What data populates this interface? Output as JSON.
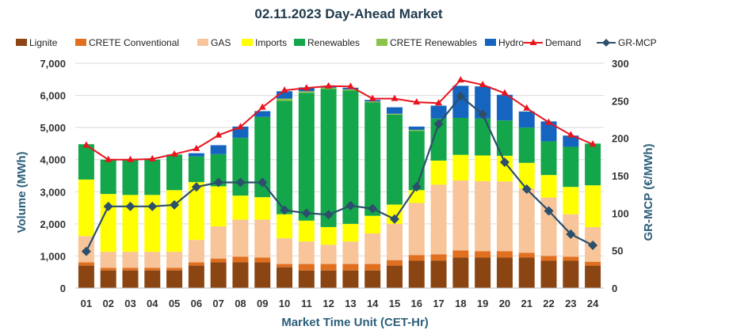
{
  "chart_data": {
    "type": "stacked-bar+line",
    "title": "02.11.2023  Day-Ahead Market",
    "xlabel": "Market Time Unit (CET-Hr)",
    "ylabel": "Volume (MWh)",
    "ylabel_right": "GR-MCP (€/MWh)",
    "ylim": [
      0,
      7000
    ],
    "ylim_right": [
      0,
      300
    ],
    "yticks": [
      "0",
      "1,000",
      "2,000",
      "3,000",
      "4,000",
      "5,000",
      "6,000",
      "7,000"
    ],
    "yticks_right": [
      "0",
      "50",
      "100",
      "150",
      "200",
      "250",
      "300"
    ],
    "categories": [
      "01",
      "02",
      "03",
      "04",
      "05",
      "06",
      "07",
      "08",
      "09",
      "10",
      "11",
      "12",
      "13",
      "14",
      "15",
      "16",
      "17",
      "18",
      "19",
      "20",
      "21",
      "22",
      "23",
      "24"
    ],
    "series": [
      {
        "name": "Lignite",
        "color": "#8B4513",
        "kind": "bar",
        "values": [
          700,
          550,
          550,
          550,
          550,
          700,
          800,
          800,
          800,
          650,
          550,
          550,
          550,
          550,
          700,
          850,
          850,
          950,
          950,
          950,
          950,
          850,
          850,
          700
        ]
      },
      {
        "name": "CRETE Conventional",
        "color": "#E07020",
        "kind": "bar",
        "values": [
          100,
          80,
          80,
          80,
          80,
          100,
          120,
          180,
          150,
          100,
          200,
          200,
          200,
          200,
          170,
          180,
          200,
          220,
          200,
          200,
          150,
          150,
          130,
          120
        ]
      },
      {
        "name": "GAS",
        "color": "#F8C49A",
        "kind": "bar",
        "values": [
          820,
          500,
          500,
          500,
          500,
          700,
          1000,
          1150,
          1180,
          800,
          700,
          600,
          700,
          950,
          1130,
          1620,
          2170,
          2180,
          2180,
          2170,
          2000,
          1820,
          1320,
          1080
        ]
      },
      {
        "name": "Imports",
        "color": "#FFFF00",
        "kind": "bar",
        "values": [
          1760,
          1800,
          1770,
          1770,
          1920,
          1800,
          1250,
          750,
          700,
          750,
          650,
          550,
          550,
          550,
          600,
          400,
          750,
          800,
          800,
          800,
          800,
          700,
          850,
          1300
        ]
      },
      {
        "name": "Renewables",
        "color": "#14A64A",
        "kind": "bar",
        "values": [
          1100,
          1070,
          1100,
          1100,
          1110,
          800,
          1000,
          1800,
          2500,
          3530,
          3980,
          4300,
          4150,
          3530,
          2800,
          1850,
          1310,
          1150,
          1150,
          1100,
          1100,
          1050,
          1250,
          1300
        ]
      },
      {
        "name": "CRETE Renewables",
        "color": "#8BC34A",
        "kind": "bar",
        "values": [
          0,
          0,
          0,
          0,
          0,
          0,
          0,
          0,
          0,
          70,
          50,
          40,
          40,
          30,
          30,
          30,
          0,
          0,
          0,
          0,
          0,
          0,
          0,
          0
        ]
      },
      {
        "name": "Hydro",
        "color": "#1565C0",
        "kind": "bar",
        "values": [
          0,
          0,
          0,
          0,
          0,
          100,
          280,
          350,
          180,
          230,
          120,
          50,
          50,
          50,
          200,
          100,
          400,
          1000,
          1000,
          800,
          500,
          620,
          350,
          0
        ]
      },
      {
        "name": "Demand",
        "color": "#E8141E",
        "kind": "line",
        "marker": "triangle",
        "axis": "left",
        "values": [
          4450,
          4000,
          4000,
          4020,
          4170,
          4340,
          4760,
          5020,
          5630,
          6160,
          6230,
          6290,
          6280,
          5900,
          5900,
          5790,
          5760,
          6480,
          6330,
          6070,
          5600,
          5160,
          4770,
          4480
        ]
      },
      {
        "name": "GR-MCP",
        "color": "#2C4F6B",
        "kind": "line",
        "marker": "diamond",
        "axis": "right",
        "values": [
          49,
          109,
          109,
          109,
          111,
          135,
          141,
          141,
          141,
          104,
          100,
          98,
          110,
          106,
          92,
          135,
          219,
          256,
          232,
          168,
          132,
          103,
          72,
          57
        ]
      }
    ]
  }
}
